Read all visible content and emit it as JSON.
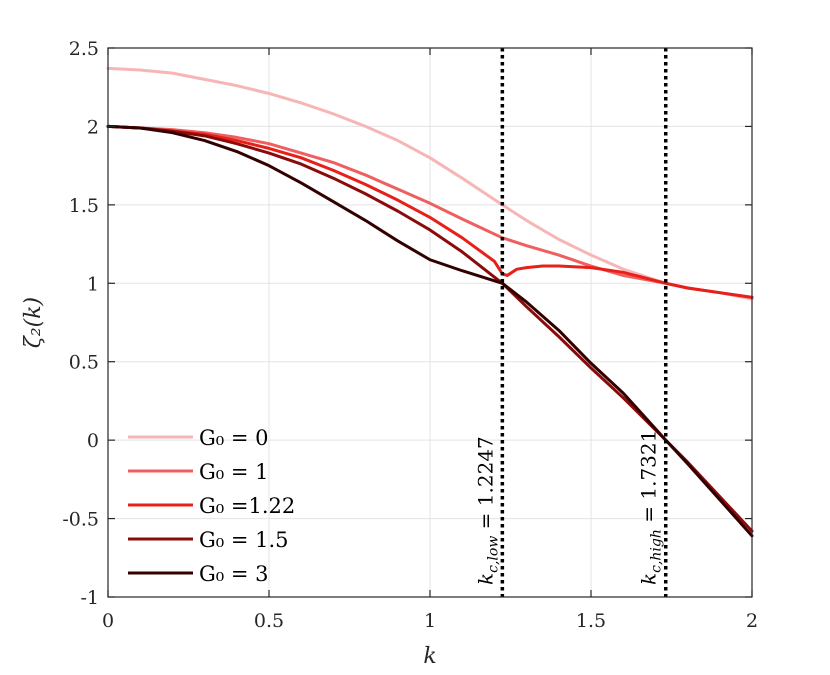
{
  "chart_data": {
    "type": "line",
    "xlabel": "k",
    "ylabel": "ζ₂(k)",
    "xlim": [
      0,
      2
    ],
    "ylim": [
      -1,
      2.5
    ],
    "xticks": [
      0,
      0.5,
      1,
      1.5,
      2
    ],
    "xtick_labels": [
      "0",
      "0.5",
      "1",
      "1.5",
      "2"
    ],
    "yticks": [
      -1,
      -0.5,
      0,
      0.5,
      1,
      1.5,
      2,
      2.5
    ],
    "ytick_labels": [
      "-1",
      "-0.5",
      "0",
      "0.5",
      "1",
      "1.5",
      "2",
      "2.5"
    ],
    "grid": true,
    "legend_position": "bottom-left",
    "series": [
      {
        "name": "G₀ = 0",
        "color": "#f7b6b6",
        "x": [
          0,
          0.1,
          0.2,
          0.3,
          0.4,
          0.5,
          0.6,
          0.7,
          0.8,
          0.9,
          1.0,
          1.1,
          1.2247,
          1.3,
          1.4,
          1.5,
          1.6,
          1.7321,
          1.8,
          1.9,
          2.0
        ],
        "y": [
          2.37,
          2.36,
          2.34,
          2.3,
          2.26,
          2.21,
          2.15,
          2.08,
          2.0,
          1.91,
          1.8,
          1.67,
          1.5,
          1.4,
          1.28,
          1.18,
          1.09,
          1.0,
          0.97,
          0.94,
          0.9
        ]
      },
      {
        "name": "G₀ = 1",
        "color": "#ef5f5f",
        "x": [
          0,
          0.1,
          0.2,
          0.3,
          0.4,
          0.5,
          0.6,
          0.7,
          0.8,
          0.9,
          1.0,
          1.1,
          1.2247,
          1.3,
          1.4,
          1.5,
          1.6,
          1.7321,
          1.8,
          1.9,
          2.0
        ],
        "y": [
          2.0,
          1.99,
          1.98,
          1.96,
          1.93,
          1.89,
          1.83,
          1.77,
          1.69,
          1.6,
          1.51,
          1.41,
          1.29,
          1.24,
          1.18,
          1.11,
          1.05,
          1.0,
          0.97,
          0.94,
          0.91
        ]
      },
      {
        "name": "G₀ =1.22",
        "color": "#e8201a",
        "x": [
          0,
          0.1,
          0.2,
          0.3,
          0.4,
          0.5,
          0.6,
          0.7,
          0.8,
          0.9,
          1.0,
          1.1,
          1.2,
          1.2247,
          1.24,
          1.27,
          1.3,
          1.35,
          1.4,
          1.5,
          1.6,
          1.7321,
          1.8,
          1.9,
          2.0
        ],
        "y": [
          2.0,
          1.99,
          1.97,
          1.95,
          1.91,
          1.86,
          1.8,
          1.72,
          1.63,
          1.53,
          1.42,
          1.29,
          1.14,
          1.06,
          1.05,
          1.09,
          1.1,
          1.11,
          1.11,
          1.1,
          1.07,
          1.0,
          0.97,
          0.94,
          0.91
        ]
      },
      {
        "name": "G₀ = 1.5",
        "color": "#8b0b0b",
        "x": [
          0,
          0.1,
          0.2,
          0.3,
          0.4,
          0.5,
          0.6,
          0.7,
          0.8,
          0.9,
          1.0,
          1.1,
          1.2247,
          1.3,
          1.4,
          1.5,
          1.6,
          1.7321,
          1.8,
          1.9,
          2.0
        ],
        "y": [
          2.0,
          1.99,
          1.97,
          1.94,
          1.89,
          1.83,
          1.76,
          1.67,
          1.57,
          1.46,
          1.34,
          1.2,
          1.0,
          0.85,
          0.66,
          0.46,
          0.27,
          0.0,
          -0.14,
          -0.36,
          -0.58
        ]
      },
      {
        "name": "G₀ = 3",
        "color": "#330000",
        "x": [
          0,
          0.1,
          0.2,
          0.3,
          0.4,
          0.5,
          0.6,
          0.7,
          0.8,
          0.9,
          1.0,
          1.1,
          1.2247,
          1.3,
          1.4,
          1.5,
          1.6,
          1.7321,
          1.8,
          1.9,
          2.0
        ],
        "y": [
          2.0,
          1.99,
          1.96,
          1.91,
          1.84,
          1.75,
          1.64,
          1.52,
          1.4,
          1.27,
          1.15,
          1.08,
          1.0,
          0.88,
          0.7,
          0.49,
          0.3,
          0.0,
          -0.15,
          -0.38,
          -0.61
        ]
      }
    ],
    "vertical_lines": [
      {
        "x": 1.2247,
        "label": "k_{c,low} = 1.2247",
        "label_main": "k",
        "label_sub": "c,low",
        "label_rest": " = 1.2247"
      },
      {
        "x": 1.7321,
        "label": "k_{c,high} = 1.7321",
        "label_main": "k",
        "label_sub": "c,high",
        "label_rest": " = 1.7321"
      }
    ]
  }
}
